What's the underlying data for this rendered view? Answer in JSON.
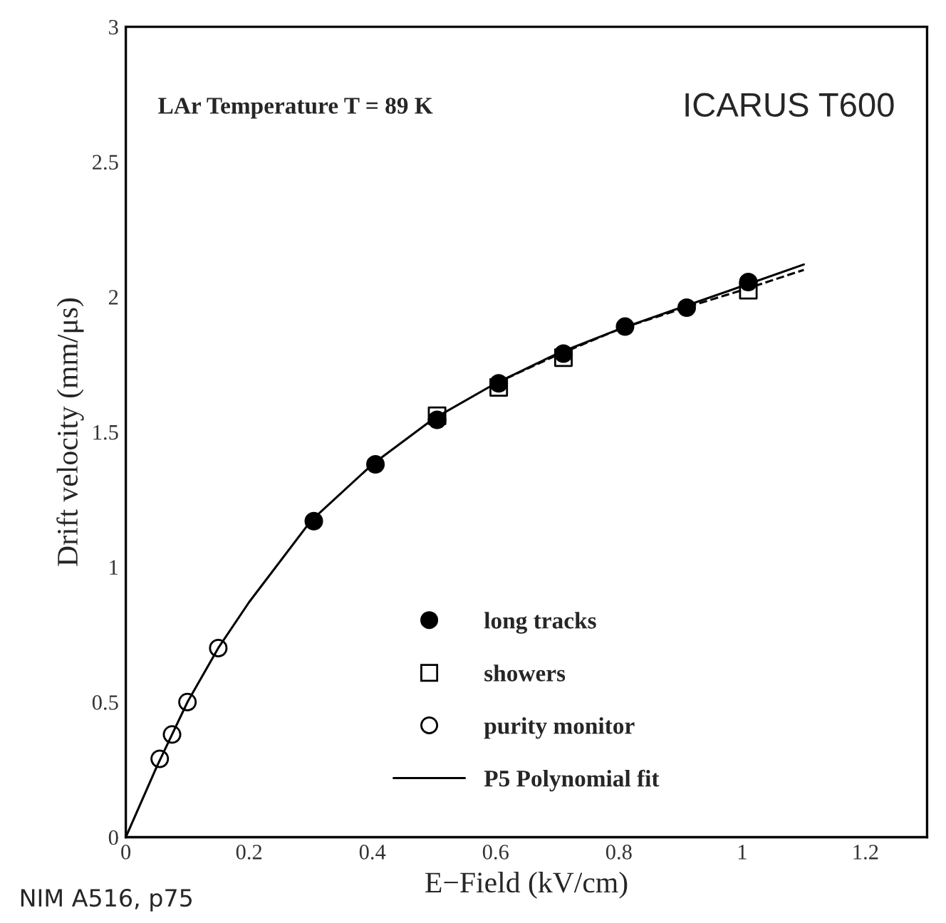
{
  "chart_data": {
    "type": "scatter",
    "xlabel": "E−Field (kV/cm)",
    "ylabel": "Drift velocity (mm/μs)",
    "xlim": [
      0,
      1.3
    ],
    "ylim": [
      0,
      3
    ],
    "xticks": [
      0,
      0.2,
      0.4,
      0.6,
      0.8,
      1,
      1.2
    ],
    "yticks": [
      0,
      0.5,
      1,
      1.5,
      2,
      2.5,
      3
    ],
    "grid": false,
    "legend": "bottom",
    "annotations": [
      "LAr Temperature T = 89 K",
      "ICARUS T600",
      "NIM A516, p75"
    ],
    "series": [
      {
        "name": "P5 Polynomial fit",
        "type": "line",
        "color": "#000000",
        "line_style": "solid",
        "marker": "none",
        "x": [
          0,
          0.05,
          0.1,
          0.15,
          0.2,
          0.3,
          0.4,
          0.5,
          0.6,
          0.7,
          0.8,
          0.9,
          1.0,
          1.1
        ],
        "values": [
          0,
          0.26,
          0.5,
          0.7,
          0.87,
          1.17,
          1.38,
          1.55,
          1.68,
          1.79,
          1.88,
          1.96,
          2.04,
          2.12
        ]
      },
      {
        "type": "line",
        "color": "#000000",
        "line_style": "dashed",
        "marker": "none",
        "x": [
          0.6,
          0.7,
          0.8,
          0.9,
          1.0,
          1.1
        ],
        "values": [
          1.68,
          1.785,
          1.88,
          1.955,
          2.025,
          2.1
        ]
      },
      {
        "name": "long tracks",
        "color": "#000000",
        "marker": "circle",
        "x": [
          0.305,
          0.405,
          0.505,
          0.605,
          0.71,
          0.81,
          0.91,
          1.01
        ],
        "values": [
          1.17,
          1.38,
          1.545,
          1.68,
          1.79,
          1.89,
          1.96,
          2.055
        ]
      },
      {
        "name": "showers",
        "color": "#000000",
        "marker": "square",
        "x": [
          0.505,
          0.605,
          0.71,
          1.01
        ],
        "values": [
          1.56,
          1.665,
          1.775,
          2.025
        ]
      },
      {
        "name": "purity monitor",
        "color": "#000000",
        "marker": "circle",
        "x": [
          0.055,
          0.075,
          0.1,
          0.15
        ],
        "values": [
          0.29,
          0.38,
          0.5,
          0.7
        ]
      }
    ]
  }
}
